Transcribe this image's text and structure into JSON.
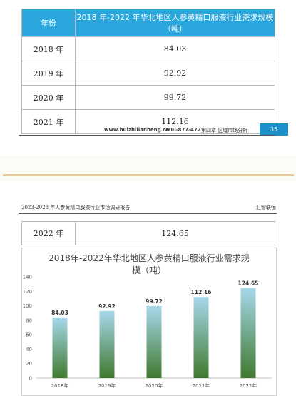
{
  "table": {
    "header": {
      "year": "年份",
      "value": "2018 年-2022 年华北地区人参黄精口服液行业需求规模（吨）"
    },
    "rows": [
      {
        "year": "2018 年",
        "value": "84.03"
      },
      {
        "year": "2019 年",
        "value": "92.92"
      },
      {
        "year": "2020 年",
        "value": "99.72"
      },
      {
        "year": "2021 年",
        "value": "112.16"
      }
    ],
    "row_2022": {
      "year": "2022 年",
      "value": "124.65"
    }
  },
  "footer": {
    "url": "www.huizhilianheng.cn",
    "phone": "400-877-4721|",
    "chapter": "第四章  区域市场分析",
    "page": "35"
  },
  "header2": {
    "left": "2023-2028 年人参黄精口服液行业市场调研报告",
    "right": "汇智联恒"
  },
  "chart_data": {
    "type": "bar",
    "title_line1": "2018年-2022年华北地区人参黄精口服液行业需求规",
    "title_line2": "模（吨）",
    "categories": [
      "2018年",
      "2019年",
      "2020年",
      "2021年",
      "2022年"
    ],
    "values": [
      84.03,
      92.92,
      99.72,
      112.16,
      124.65
    ],
    "ylim": [
      0,
      140
    ],
    "yticks": [
      0,
      20,
      40,
      60,
      80,
      100,
      120,
      140
    ],
    "grid": false,
    "colors": {
      "top": "#a7d8ec",
      "bottom": "#3f7a2e"
    }
  }
}
